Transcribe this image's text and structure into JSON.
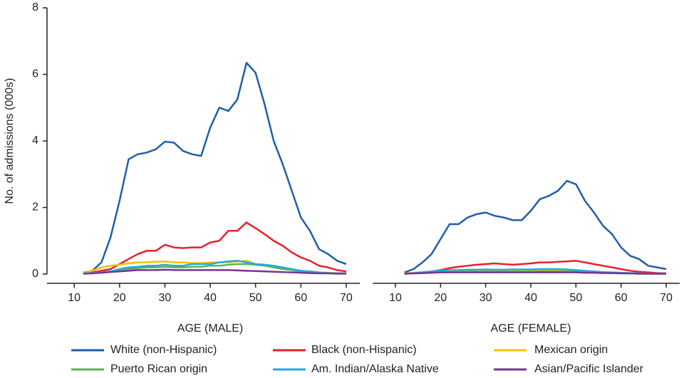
{
  "chart_data": [
    {
      "type": "line",
      "xlabel": "AGE (MALE)",
      "ylabel": "No. of admissions (000s)",
      "x": [
        12,
        14,
        16,
        18,
        20,
        22,
        24,
        26,
        28,
        30,
        32,
        34,
        36,
        38,
        40,
        42,
        44,
        46,
        48,
        50,
        52,
        54,
        56,
        58,
        60,
        62,
        64,
        66,
        68,
        70
      ],
      "xlim": [
        4,
        73
      ],
      "xticks": [
        10,
        20,
        30,
        40,
        50,
        60,
        70
      ],
      "ylim": [
        0,
        8
      ],
      "yticks": [
        0,
        2,
        4,
        6,
        8
      ],
      "series": [
        {
          "name": "White (non-Hispanic)",
          "color": "#1f5fa8",
          "values": [
            0.05,
            0.1,
            0.35,
            1.1,
            2.2,
            3.45,
            3.6,
            3.65,
            3.75,
            3.98,
            3.95,
            3.7,
            3.6,
            3.55,
            4.4,
            5.0,
            4.9,
            5.25,
            6.35,
            6.05,
            5.1,
            4.0,
            3.3,
            2.5,
            1.7,
            1.3,
            0.75,
            0.6,
            0.4,
            0.3
          ]
        },
        {
          "name": "Black (non-Hispanic)",
          "color": "#e8202a",
          "values": [
            0.02,
            0.05,
            0.1,
            0.15,
            0.3,
            0.45,
            0.6,
            0.7,
            0.7,
            0.88,
            0.8,
            0.78,
            0.8,
            0.8,
            0.95,
            1.0,
            1.3,
            1.3,
            1.55,
            1.38,
            1.2,
            1.0,
            0.85,
            0.65,
            0.5,
            0.4,
            0.25,
            0.2,
            0.12,
            0.08
          ]
        },
        {
          "name": "Mexican origin",
          "color": "#f5c000",
          "values": [
            0.05,
            0.1,
            0.2,
            0.25,
            0.28,
            0.32,
            0.35,
            0.35,
            0.37,
            0.38,
            0.35,
            0.35,
            0.33,
            0.33,
            0.35,
            0.35,
            0.35,
            0.38,
            0.4,
            0.3,
            0.28,
            0.22,
            0.18,
            0.12,
            0.1,
            0.08,
            0.05,
            0.04,
            0.03,
            0.02
          ]
        },
        {
          "name": "Puerto Rican origin",
          "color": "#5ab552",
          "values": [
            0.02,
            0.03,
            0.05,
            0.08,
            0.12,
            0.15,
            0.18,
            0.2,
            0.2,
            0.22,
            0.2,
            0.2,
            0.22,
            0.22,
            0.25,
            0.25,
            0.28,
            0.3,
            0.3,
            0.28,
            0.25,
            0.2,
            0.15,
            0.12,
            0.08,
            0.06,
            0.04,
            0.03,
            0.02,
            0.02
          ]
        },
        {
          "name": "Am. Indian/Alaska Native",
          "color": "#27a9e1",
          "values": [
            0.02,
            0.03,
            0.05,
            0.08,
            0.15,
            0.2,
            0.22,
            0.25,
            0.25,
            0.28,
            0.25,
            0.25,
            0.3,
            0.3,
            0.3,
            0.35,
            0.38,
            0.4,
            0.35,
            0.3,
            0.28,
            0.25,
            0.2,
            0.15,
            0.1,
            0.08,
            0.05,
            0.03,
            0.02,
            0.02
          ]
        },
        {
          "name": "Asian/Pacific Islander",
          "color": "#7b3294",
          "values": [
            0.01,
            0.02,
            0.04,
            0.06,
            0.08,
            0.1,
            0.12,
            0.12,
            0.12,
            0.13,
            0.12,
            0.12,
            0.12,
            0.12,
            0.12,
            0.12,
            0.12,
            0.11,
            0.1,
            0.09,
            0.08,
            0.07,
            0.06,
            0.05,
            0.04,
            0.03,
            0.02,
            0.02,
            0.01,
            0.01
          ]
        }
      ]
    },
    {
      "type": "line",
      "xlabel": "AGE (FEMALE)",
      "x": [
        12,
        14,
        16,
        18,
        20,
        22,
        24,
        26,
        28,
        30,
        32,
        34,
        36,
        38,
        40,
        42,
        44,
        46,
        48,
        50,
        52,
        54,
        56,
        58,
        60,
        62,
        64,
        66,
        68,
        70
      ],
      "xlim": [
        5,
        73
      ],
      "xticks": [
        10,
        20,
        30,
        40,
        50,
        60,
        70
      ],
      "series": [
        {
          "color": "#1f5fa8",
          "values": [
            0.05,
            0.15,
            0.35,
            0.6,
            1.05,
            1.5,
            1.5,
            1.7,
            1.8,
            1.85,
            1.75,
            1.7,
            1.62,
            1.62,
            1.9,
            2.25,
            2.35,
            2.5,
            2.8,
            2.7,
            2.2,
            1.85,
            1.45,
            1.2,
            0.8,
            0.55,
            0.45,
            0.25,
            0.2,
            0.15
          ]
        },
        {
          "color": "#e8202a",
          "values": [
            0.01,
            0.03,
            0.05,
            0.08,
            0.12,
            0.18,
            0.22,
            0.25,
            0.28,
            0.3,
            0.32,
            0.3,
            0.28,
            0.3,
            0.32,
            0.35,
            0.35,
            0.37,
            0.38,
            0.4,
            0.35,
            0.3,
            0.25,
            0.2,
            0.15,
            0.1,
            0.07,
            0.05,
            0.03,
            0.02
          ]
        },
        {
          "color": "#f5c000",
          "values": [
            0.02,
            0.04,
            0.06,
            0.08,
            0.1,
            0.1,
            0.1,
            0.1,
            0.1,
            0.1,
            0.1,
            0.1,
            0.1,
            0.1,
            0.1,
            0.1,
            0.1,
            0.1,
            0.1,
            0.09,
            0.08,
            0.06,
            0.05,
            0.04,
            0.03,
            0.02,
            0.02,
            0.01,
            0.01,
            0.01
          ]
        },
        {
          "color": "#5ab552",
          "values": [
            0.01,
            0.02,
            0.03,
            0.04,
            0.05,
            0.06,
            0.06,
            0.07,
            0.07,
            0.07,
            0.07,
            0.07,
            0.07,
            0.07,
            0.07,
            0.08,
            0.08,
            0.08,
            0.08,
            0.07,
            0.06,
            0.05,
            0.04,
            0.03,
            0.02,
            0.02,
            0.01,
            0.01,
            0.01,
            0.01
          ]
        },
        {
          "color": "#27a9e1",
          "values": [
            0.01,
            0.03,
            0.05,
            0.08,
            0.1,
            0.12,
            0.12,
            0.13,
            0.13,
            0.14,
            0.13,
            0.13,
            0.14,
            0.14,
            0.14,
            0.15,
            0.15,
            0.15,
            0.14,
            0.12,
            0.1,
            0.08,
            0.06,
            0.05,
            0.04,
            0.03,
            0.02,
            0.01,
            0.01,
            0.01
          ]
        },
        {
          "color": "#7b3294",
          "values": [
            0.01,
            0.02,
            0.03,
            0.04,
            0.05,
            0.05,
            0.05,
            0.05,
            0.05,
            0.05,
            0.05,
            0.05,
            0.05,
            0.05,
            0.05,
            0.05,
            0.05,
            0.05,
            0.05,
            0.05,
            0.04,
            0.04,
            0.03,
            0.03,
            0.02,
            0.02,
            0.01,
            0.01,
            0.01,
            0.01
          ]
        }
      ]
    }
  ]
}
